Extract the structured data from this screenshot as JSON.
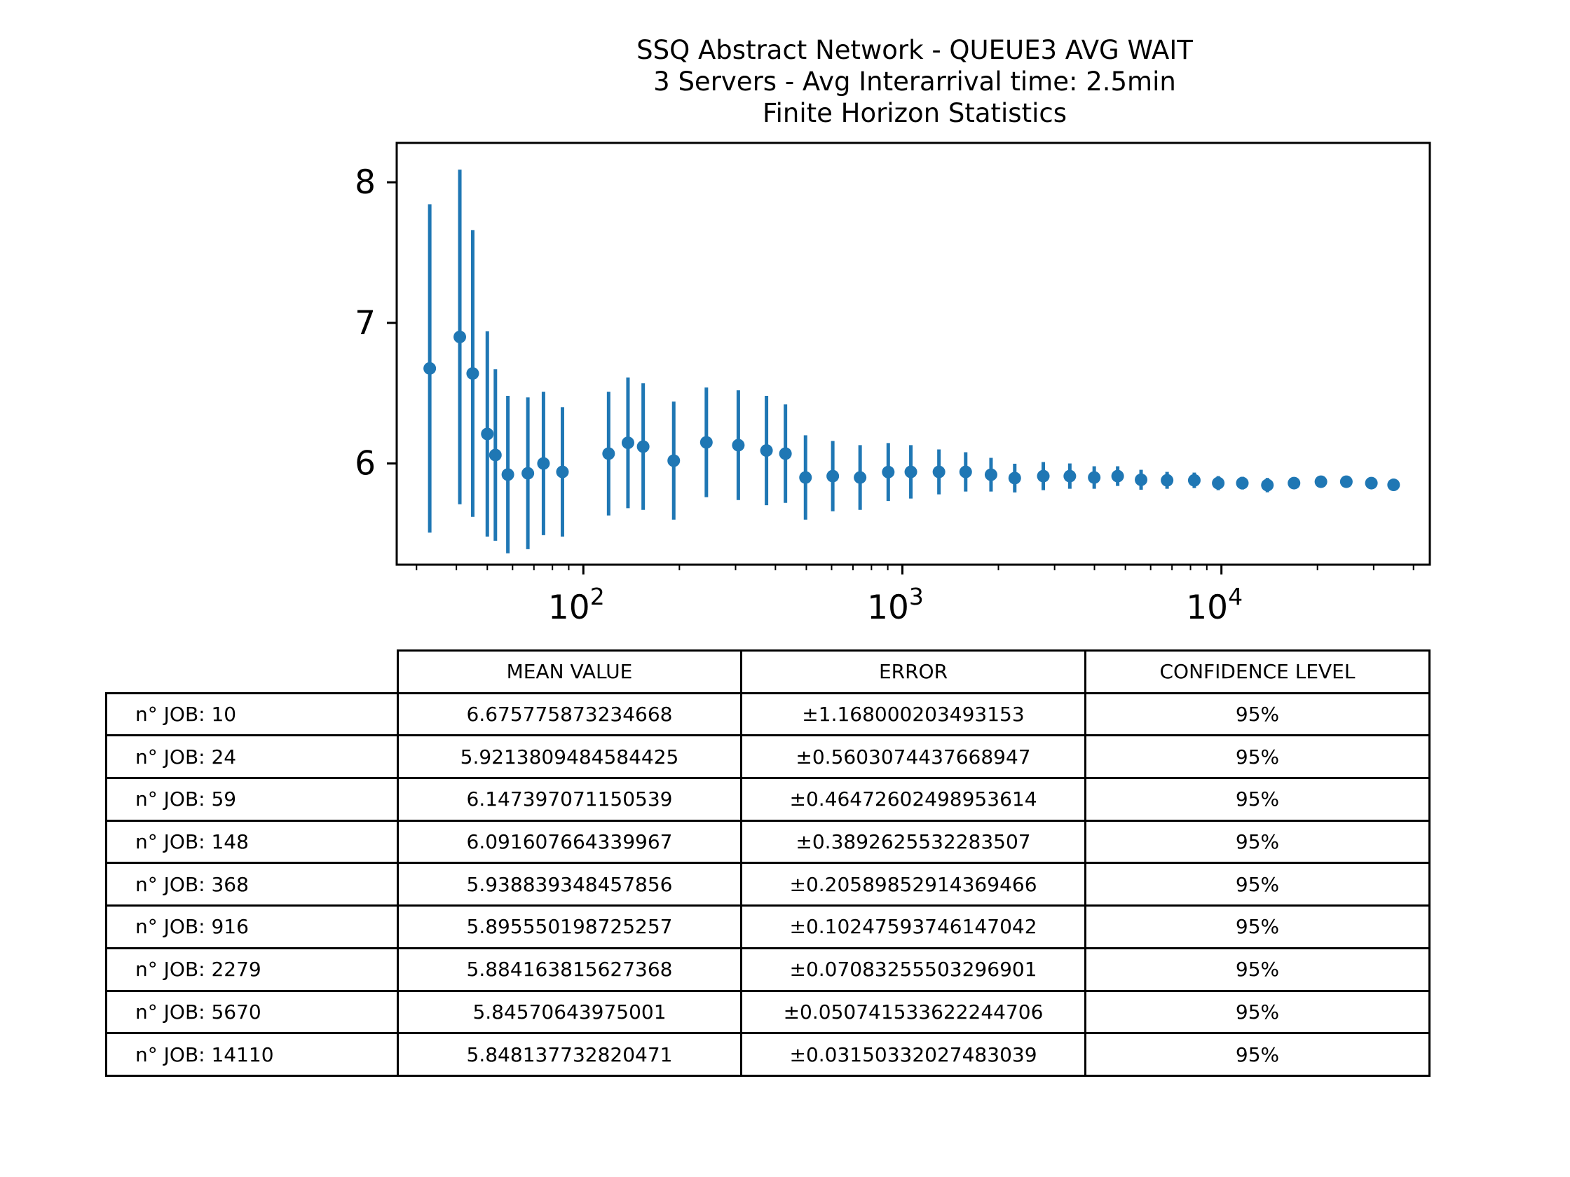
{
  "chart_data": {
    "type": "scatter",
    "title_lines": [
      "SSQ Abstract Network - QUEUE3 AVG WAIT",
      "3 Servers -  Avg Interarrival time: 2.5min",
      "Finite Horizon Statistics"
    ],
    "xlabel": "",
    "ylabel": "",
    "x_scale": "log",
    "xlim": [
      26,
      45000
    ],
    "ylim": [
      5.28,
      8.28
    ],
    "yticks": [
      6,
      7,
      8
    ],
    "xticks": [
      {
        "base": "10",
        "exp": "2",
        "value": 100
      },
      {
        "base": "10",
        "exp": "3",
        "value": 1000
      },
      {
        "base": "10",
        "exp": "4",
        "value": 10000
      }
    ],
    "color": "#1f77b4",
    "points": [
      {
        "x": 33,
        "y": 6.676,
        "err": 1.168
      },
      {
        "x": 41,
        "y": 6.9,
        "err": 1.19
      },
      {
        "x": 45,
        "y": 6.64,
        "err": 1.02
      },
      {
        "x": 50,
        "y": 6.21,
        "err": 0.73
      },
      {
        "x": 53,
        "y": 6.06,
        "err": 0.61
      },
      {
        "x": 58,
        "y": 5.921,
        "err": 0.56
      },
      {
        "x": 67,
        "y": 5.93,
        "err": 0.54
      },
      {
        "x": 75,
        "y": 6.0,
        "err": 0.51
      },
      {
        "x": 86,
        "y": 5.94,
        "err": 0.46
      },
      {
        "x": 120,
        "y": 6.07,
        "err": 0.44
      },
      {
        "x": 138,
        "y": 6.147,
        "err": 0.465
      },
      {
        "x": 154,
        "y": 6.12,
        "err": 0.45
      },
      {
        "x": 192,
        "y": 6.02,
        "err": 0.42
      },
      {
        "x": 243,
        "y": 6.15,
        "err": 0.39
      },
      {
        "x": 306,
        "y": 6.13,
        "err": 0.39
      },
      {
        "x": 375,
        "y": 6.092,
        "err": 0.389
      },
      {
        "x": 430,
        "y": 6.07,
        "err": 0.35
      },
      {
        "x": 497,
        "y": 5.9,
        "err": 0.3
      },
      {
        "x": 605,
        "y": 5.91,
        "err": 0.25
      },
      {
        "x": 737,
        "y": 5.9,
        "err": 0.23
      },
      {
        "x": 903,
        "y": 5.939,
        "err": 0.206
      },
      {
        "x": 1063,
        "y": 5.94,
        "err": 0.19
      },
      {
        "x": 1302,
        "y": 5.94,
        "err": 0.16
      },
      {
        "x": 1579,
        "y": 5.94,
        "err": 0.14
      },
      {
        "x": 1896,
        "y": 5.92,
        "err": 0.12
      },
      {
        "x": 2250,
        "y": 5.896,
        "err": 0.102
      },
      {
        "x": 2765,
        "y": 5.91,
        "err": 0.1
      },
      {
        "x": 3348,
        "y": 5.91,
        "err": 0.09
      },
      {
        "x": 3993,
        "y": 5.9,
        "err": 0.08
      },
      {
        "x": 4729,
        "y": 5.91,
        "err": 0.07
      },
      {
        "x": 5600,
        "y": 5.884,
        "err": 0.071
      },
      {
        "x": 6756,
        "y": 5.88,
        "err": 0.06
      },
      {
        "x": 8222,
        "y": 5.88,
        "err": 0.055
      },
      {
        "x": 9773,
        "y": 5.86,
        "err": 0.05
      },
      {
        "x": 11628,
        "y": 5.86,
        "err": 0.045
      },
      {
        "x": 13934,
        "y": 5.846,
        "err": 0.051
      },
      {
        "x": 16886,
        "y": 5.86,
        "err": 0.03
      },
      {
        "x": 20508,
        "y": 5.87,
        "err": 0.03
      },
      {
        "x": 24633,
        "y": 5.87,
        "err": 0.03
      },
      {
        "x": 29512,
        "y": 5.86,
        "err": 0.03
      },
      {
        "x": 34650,
        "y": 5.848,
        "err": 0.032
      }
    ]
  },
  "table": {
    "headers": [
      "MEAN VALUE",
      "ERROR",
      "CONFIDENCE LEVEL"
    ],
    "rows": [
      {
        "label": "n° JOB: 10",
        "mean": "6.675775873234668",
        "error": "±1.168000203493153",
        "confidence": "95%"
      },
      {
        "label": "n° JOB: 24",
        "mean": "5.9213809484584425",
        "error": "±0.5603074437668947",
        "confidence": "95%"
      },
      {
        "label": "n° JOB: 59",
        "mean": "6.147397071150539",
        "error": "±0.46472602498953614",
        "confidence": "95%"
      },
      {
        "label": "n° JOB: 148",
        "mean": "6.091607664339967",
        "error": "±0.3892625532283507",
        "confidence": "95%"
      },
      {
        "label": "n° JOB: 368",
        "mean": "5.938839348457856",
        "error": "±0.20589852914369466",
        "confidence": "95%"
      },
      {
        "label": "n° JOB: 916",
        "mean": "5.895550198725257",
        "error": "±0.10247593746147042",
        "confidence": "95%"
      },
      {
        "label": "n° JOB: 2279",
        "mean": "5.884163815627368",
        "error": "±0.07083255503296901",
        "confidence": "95%"
      },
      {
        "label": "n° JOB: 5670",
        "mean": "5.84570643975001",
        "error": "±0.050741533622244706",
        "confidence": "95%"
      },
      {
        "label": "n° JOB: 14110",
        "mean": "5.848137732820471",
        "error": "±0.03150332027483039",
        "confidence": "95%"
      }
    ]
  }
}
